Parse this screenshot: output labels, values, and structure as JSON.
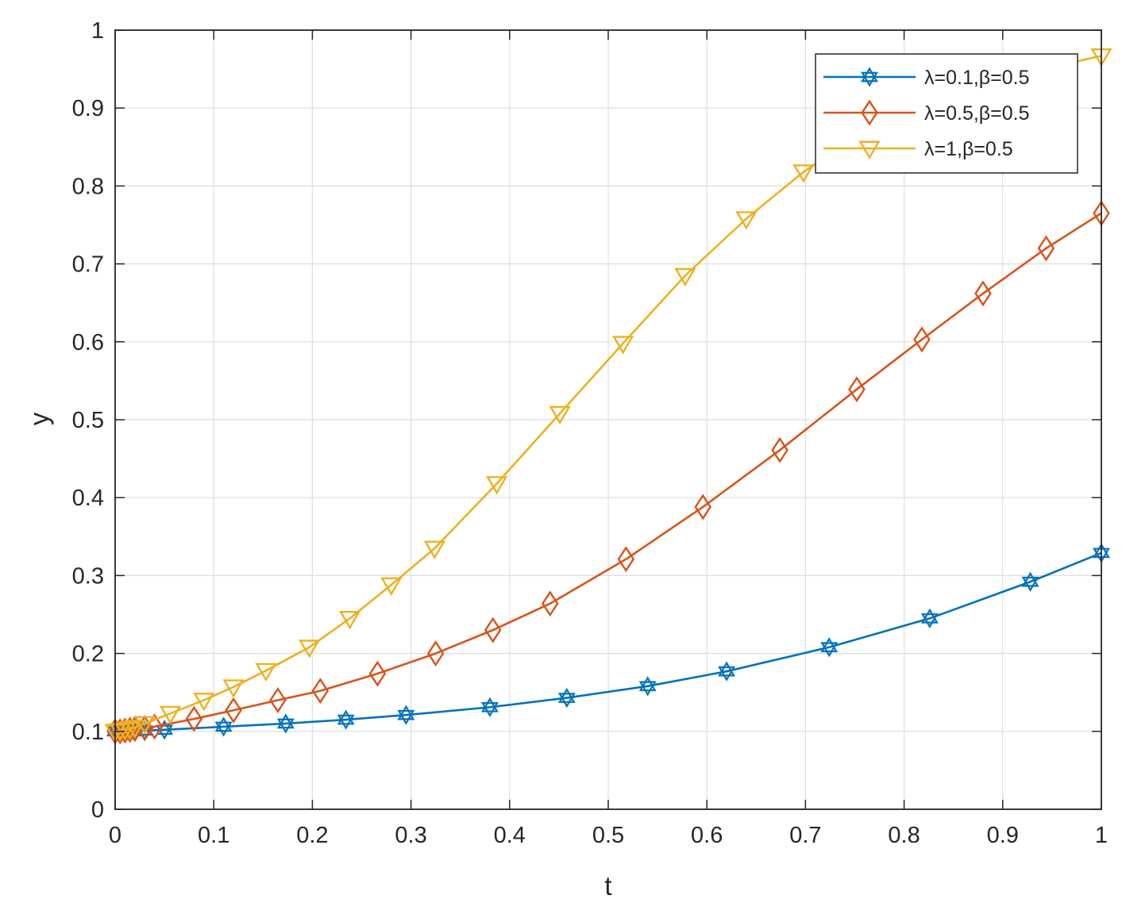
{
  "chart_data": {
    "type": "line",
    "title": "",
    "xlabel": "t",
    "ylabel": "y",
    "xlim": [
      0,
      1
    ],
    "ylim": [
      0,
      1
    ],
    "xticks": [
      "0",
      "0.1",
      "0.2",
      "0.3",
      "0.4",
      "0.5",
      "0.6",
      "0.7",
      "0.8",
      "0.9",
      "1"
    ],
    "yticks": [
      "0",
      "0.1",
      "0.2",
      "0.3",
      "0.4",
      "0.5",
      "0.6",
      "0.7",
      "0.8",
      "0.9",
      "1"
    ],
    "grid": true,
    "legend_position": "top-right",
    "series": [
      {
        "name": "λ=0.1,β=0.5",
        "color": "#0072BD",
        "marker": "hexagram",
        "x": [
          0,
          0.005,
          0.01,
          0.015,
          0.02,
          0.03,
          0.05,
          0.11,
          0.173,
          0.234,
          0.295,
          0.38,
          0.458,
          0.54,
          0.62,
          0.724,
          0.826,
          0.928,
          1.0
        ],
        "y": [
          0.1,
          0.1,
          0.1,
          0.1,
          0.1,
          0.101,
          0.102,
          0.106,
          0.11,
          0.115,
          0.121,
          0.131,
          0.143,
          0.158,
          0.177,
          0.208,
          0.245,
          0.292,
          0.329
        ]
      },
      {
        "name": "λ=0.5,β=0.5",
        "color": "#D95319",
        "marker": "diamond",
        "x": [
          0,
          0.005,
          0.01,
          0.015,
          0.02,
          0.03,
          0.04,
          0.08,
          0.12,
          0.165,
          0.208,
          0.266,
          0.325,
          0.383,
          0.441,
          0.518,
          0.596,
          0.674,
          0.752,
          0.818,
          0.88,
          0.944,
          1.0
        ],
        "y": [
          0.1,
          0.1,
          0.101,
          0.102,
          0.103,
          0.104,
          0.106,
          0.116,
          0.127,
          0.14,
          0.152,
          0.174,
          0.2,
          0.23,
          0.264,
          0.321,
          0.388,
          0.461,
          0.539,
          0.603,
          0.662,
          0.72,
          0.765
        ]
      },
      {
        "name": "λ=1,β=0.5",
        "color": "#EDB120",
        "marker": "triangle-down",
        "x": [
          0,
          0.005,
          0.01,
          0.015,
          0.02,
          0.03,
          0.056,
          0.09,
          0.12,
          0.153,
          0.197,
          0.238,
          0.28,
          0.324,
          0.387,
          0.451,
          0.515,
          0.578,
          0.64,
          0.698,
          0.76,
          0.82,
          0.88,
          0.94,
          1.0
        ],
        "y": [
          0.1,
          0.101,
          0.102,
          0.103,
          0.105,
          0.11,
          0.123,
          0.14,
          0.157,
          0.178,
          0.208,
          0.245,
          0.288,
          0.335,
          0.418,
          0.508,
          0.598,
          0.685,
          0.758,
          0.818,
          0.87,
          0.905,
          0.93,
          0.95,
          0.967
        ]
      }
    ]
  }
}
